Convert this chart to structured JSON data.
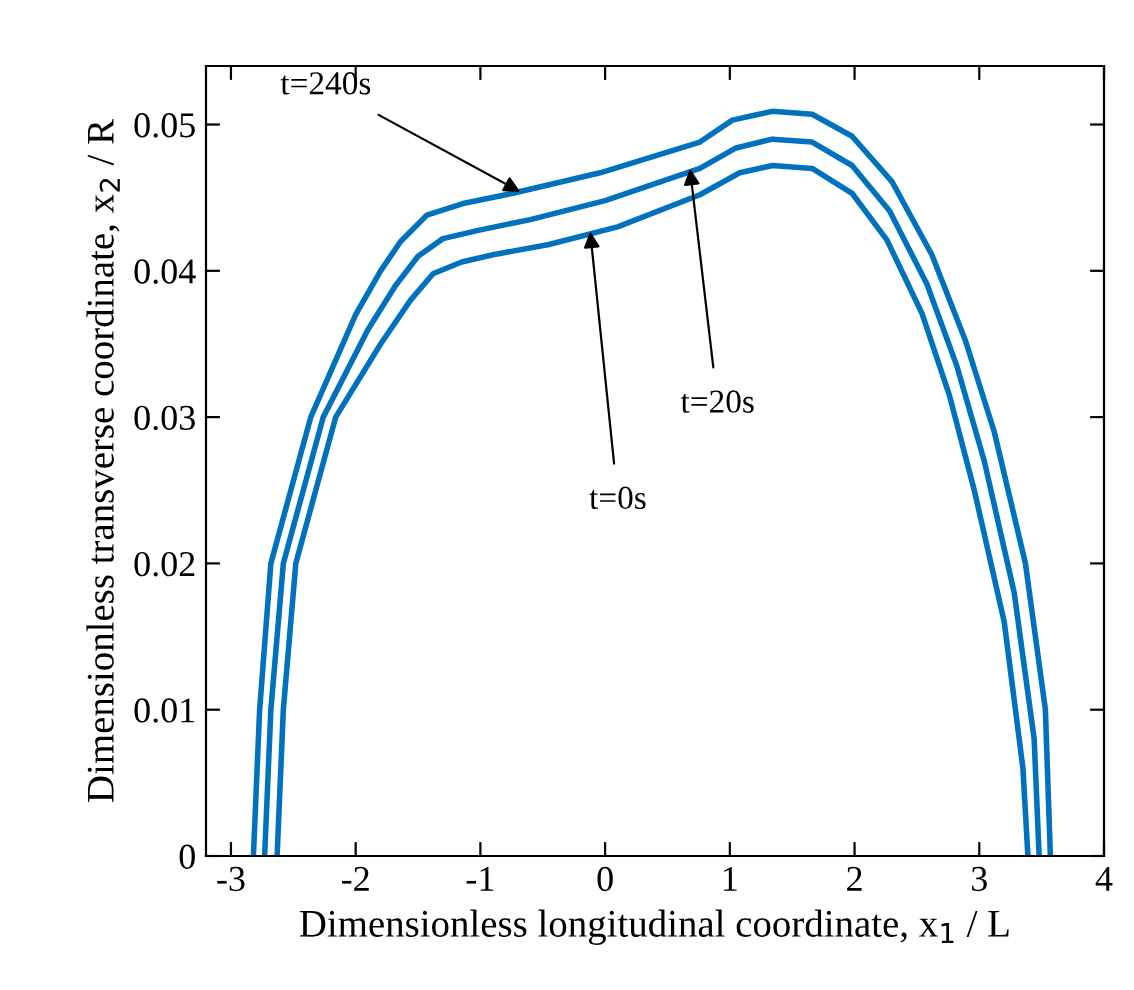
{
  "chart_data": {
    "type": "line",
    "xlabel": "Dimensionless longitudinal coordinate, x$_{1}$ / L",
    "ylabel": "Dimensionless transverse coordinate, x$_{2}$ / R",
    "xlim": [
      -3.2,
      4
    ],
    "ylim": [
      0,
      0.054
    ],
    "xticks": [
      -3,
      -2,
      -1,
      0,
      1,
      2,
      3,
      4
    ],
    "yticks": [
      0,
      0.01,
      0.02,
      0.03,
      0.04,
      0.05
    ],
    "grid": false,
    "marker": "none",
    "line_style": "solid",
    "series": [
      {
        "color": "#0072bd",
        "x": [
          -2.82,
          -2.77,
          -2.68,
          -2.36,
          -2.0,
          -1.8,
          -1.64,
          -1.43,
          -1.14,
          -0.74,
          -0.04,
          0.76,
          1.02,
          1.34,
          1.66,
          1.98,
          2.3,
          2.62,
          2.89,
          3.12,
          3.37,
          3.53,
          3.57
        ],
        "values": [
          0,
          0.01,
          0.02,
          0.03,
          0.037,
          0.04,
          0.042,
          0.0438,
          0.0446,
          0.0453,
          0.0467,
          0.0488,
          0.0503,
          0.0509,
          0.0507,
          0.0492,
          0.0461,
          0.0411,
          0.0352,
          0.029,
          0.02,
          0.01,
          0
        ]
      },
      {
        "color": "#0072bd",
        "x": [
          -2.73,
          -2.68,
          -2.58,
          -2.26,
          -1.9,
          -1.68,
          -1.5,
          -1.3,
          -1.0,
          -0.6,
          0.0,
          0.76,
          1.05,
          1.34,
          1.66,
          1.98,
          2.28,
          2.58,
          2.82,
          3.04,
          3.28,
          3.44,
          3.48
        ],
        "values": [
          0,
          0.01,
          0.02,
          0.03,
          0.036,
          0.039,
          0.041,
          0.0422,
          0.0428,
          0.0435,
          0.0448,
          0.047,
          0.0484,
          0.049,
          0.0488,
          0.0472,
          0.0441,
          0.0391,
          0.0335,
          0.027,
          0.018,
          0.008,
          0
        ]
      },
      {
        "color": "#0072bd",
        "x": [
          -2.63,
          -2.58,
          -2.48,
          -2.16,
          -1.8,
          -1.56,
          -1.38,
          -1.15,
          -0.9,
          -0.45,
          0.1,
          0.76,
          1.08,
          1.34,
          1.66,
          1.98,
          2.26,
          2.54,
          2.76,
          2.96,
          3.2,
          3.35,
          3.39
        ],
        "values": [
          0,
          0.01,
          0.02,
          0.03,
          0.035,
          0.038,
          0.0398,
          0.0406,
          0.0411,
          0.0418,
          0.043,
          0.0452,
          0.0467,
          0.0472,
          0.047,
          0.0453,
          0.0421,
          0.0371,
          0.0315,
          0.025,
          0.016,
          0.006,
          0
        ]
      }
    ],
    "annotations": [
      {
        "text": "t=240s",
        "x": -0.68,
        "y": 0.0454
      },
      {
        "text": "t=20s",
        "x": 0.68,
        "y": 0.047
      },
      {
        "text": "t=0s",
        "x": -0.12,
        "y": 0.0427
      }
    ]
  }
}
